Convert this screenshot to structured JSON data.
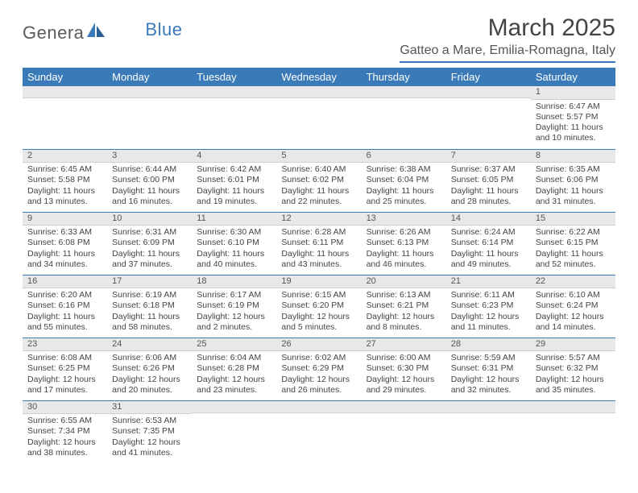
{
  "brand": {
    "main": "Genera",
    "accent": "Blue"
  },
  "title": "March 2025",
  "location": "Gatteo a Mare, Emilia-Romagna, Italy",
  "colors": {
    "header_bg": "#3a7ab8",
    "header_text": "#ffffff",
    "daynum_bg": "#e8e8e8",
    "border": "#3a7ab8",
    "logo_gray": "#5a5a5a",
    "logo_blue": "#3a7ab8"
  },
  "weekdays": [
    "Sunday",
    "Monday",
    "Tuesday",
    "Wednesday",
    "Thursday",
    "Friday",
    "Saturday"
  ],
  "weeks": [
    [
      {
        "n": "",
        "sr": "",
        "ss": "",
        "dl": ""
      },
      {
        "n": "",
        "sr": "",
        "ss": "",
        "dl": ""
      },
      {
        "n": "",
        "sr": "",
        "ss": "",
        "dl": ""
      },
      {
        "n": "",
        "sr": "",
        "ss": "",
        "dl": ""
      },
      {
        "n": "",
        "sr": "",
        "ss": "",
        "dl": ""
      },
      {
        "n": "",
        "sr": "",
        "ss": "",
        "dl": ""
      },
      {
        "n": "1",
        "sr": "Sunrise: 6:47 AM",
        "ss": "Sunset: 5:57 PM",
        "dl": "Daylight: 11 hours and 10 minutes."
      }
    ],
    [
      {
        "n": "2",
        "sr": "Sunrise: 6:45 AM",
        "ss": "Sunset: 5:58 PM",
        "dl": "Daylight: 11 hours and 13 minutes."
      },
      {
        "n": "3",
        "sr": "Sunrise: 6:44 AM",
        "ss": "Sunset: 6:00 PM",
        "dl": "Daylight: 11 hours and 16 minutes."
      },
      {
        "n": "4",
        "sr": "Sunrise: 6:42 AM",
        "ss": "Sunset: 6:01 PM",
        "dl": "Daylight: 11 hours and 19 minutes."
      },
      {
        "n": "5",
        "sr": "Sunrise: 6:40 AM",
        "ss": "Sunset: 6:02 PM",
        "dl": "Daylight: 11 hours and 22 minutes."
      },
      {
        "n": "6",
        "sr": "Sunrise: 6:38 AM",
        "ss": "Sunset: 6:04 PM",
        "dl": "Daylight: 11 hours and 25 minutes."
      },
      {
        "n": "7",
        "sr": "Sunrise: 6:37 AM",
        "ss": "Sunset: 6:05 PM",
        "dl": "Daylight: 11 hours and 28 minutes."
      },
      {
        "n": "8",
        "sr": "Sunrise: 6:35 AM",
        "ss": "Sunset: 6:06 PM",
        "dl": "Daylight: 11 hours and 31 minutes."
      }
    ],
    [
      {
        "n": "9",
        "sr": "Sunrise: 6:33 AM",
        "ss": "Sunset: 6:08 PM",
        "dl": "Daylight: 11 hours and 34 minutes."
      },
      {
        "n": "10",
        "sr": "Sunrise: 6:31 AM",
        "ss": "Sunset: 6:09 PM",
        "dl": "Daylight: 11 hours and 37 minutes."
      },
      {
        "n": "11",
        "sr": "Sunrise: 6:30 AM",
        "ss": "Sunset: 6:10 PM",
        "dl": "Daylight: 11 hours and 40 minutes."
      },
      {
        "n": "12",
        "sr": "Sunrise: 6:28 AM",
        "ss": "Sunset: 6:11 PM",
        "dl": "Daylight: 11 hours and 43 minutes."
      },
      {
        "n": "13",
        "sr": "Sunrise: 6:26 AM",
        "ss": "Sunset: 6:13 PM",
        "dl": "Daylight: 11 hours and 46 minutes."
      },
      {
        "n": "14",
        "sr": "Sunrise: 6:24 AM",
        "ss": "Sunset: 6:14 PM",
        "dl": "Daylight: 11 hours and 49 minutes."
      },
      {
        "n": "15",
        "sr": "Sunrise: 6:22 AM",
        "ss": "Sunset: 6:15 PM",
        "dl": "Daylight: 11 hours and 52 minutes."
      }
    ],
    [
      {
        "n": "16",
        "sr": "Sunrise: 6:20 AM",
        "ss": "Sunset: 6:16 PM",
        "dl": "Daylight: 11 hours and 55 minutes."
      },
      {
        "n": "17",
        "sr": "Sunrise: 6:19 AM",
        "ss": "Sunset: 6:18 PM",
        "dl": "Daylight: 11 hours and 58 minutes."
      },
      {
        "n": "18",
        "sr": "Sunrise: 6:17 AM",
        "ss": "Sunset: 6:19 PM",
        "dl": "Daylight: 12 hours and 2 minutes."
      },
      {
        "n": "19",
        "sr": "Sunrise: 6:15 AM",
        "ss": "Sunset: 6:20 PM",
        "dl": "Daylight: 12 hours and 5 minutes."
      },
      {
        "n": "20",
        "sr": "Sunrise: 6:13 AM",
        "ss": "Sunset: 6:21 PM",
        "dl": "Daylight: 12 hours and 8 minutes."
      },
      {
        "n": "21",
        "sr": "Sunrise: 6:11 AM",
        "ss": "Sunset: 6:23 PM",
        "dl": "Daylight: 12 hours and 11 minutes."
      },
      {
        "n": "22",
        "sr": "Sunrise: 6:10 AM",
        "ss": "Sunset: 6:24 PM",
        "dl": "Daylight: 12 hours and 14 minutes."
      }
    ],
    [
      {
        "n": "23",
        "sr": "Sunrise: 6:08 AM",
        "ss": "Sunset: 6:25 PM",
        "dl": "Daylight: 12 hours and 17 minutes."
      },
      {
        "n": "24",
        "sr": "Sunrise: 6:06 AM",
        "ss": "Sunset: 6:26 PM",
        "dl": "Daylight: 12 hours and 20 minutes."
      },
      {
        "n": "25",
        "sr": "Sunrise: 6:04 AM",
        "ss": "Sunset: 6:28 PM",
        "dl": "Daylight: 12 hours and 23 minutes."
      },
      {
        "n": "26",
        "sr": "Sunrise: 6:02 AM",
        "ss": "Sunset: 6:29 PM",
        "dl": "Daylight: 12 hours and 26 minutes."
      },
      {
        "n": "27",
        "sr": "Sunrise: 6:00 AM",
        "ss": "Sunset: 6:30 PM",
        "dl": "Daylight: 12 hours and 29 minutes."
      },
      {
        "n": "28",
        "sr": "Sunrise: 5:59 AM",
        "ss": "Sunset: 6:31 PM",
        "dl": "Daylight: 12 hours and 32 minutes."
      },
      {
        "n": "29",
        "sr": "Sunrise: 5:57 AM",
        "ss": "Sunset: 6:32 PM",
        "dl": "Daylight: 12 hours and 35 minutes."
      }
    ],
    [
      {
        "n": "30",
        "sr": "Sunrise: 6:55 AM",
        "ss": "Sunset: 7:34 PM",
        "dl": "Daylight: 12 hours and 38 minutes."
      },
      {
        "n": "31",
        "sr": "Sunrise: 6:53 AM",
        "ss": "Sunset: 7:35 PM",
        "dl": "Daylight: 12 hours and 41 minutes."
      },
      {
        "n": "",
        "sr": "",
        "ss": "",
        "dl": ""
      },
      {
        "n": "",
        "sr": "",
        "ss": "",
        "dl": ""
      },
      {
        "n": "",
        "sr": "",
        "ss": "",
        "dl": ""
      },
      {
        "n": "",
        "sr": "",
        "ss": "",
        "dl": ""
      },
      {
        "n": "",
        "sr": "",
        "ss": "",
        "dl": ""
      }
    ]
  ]
}
